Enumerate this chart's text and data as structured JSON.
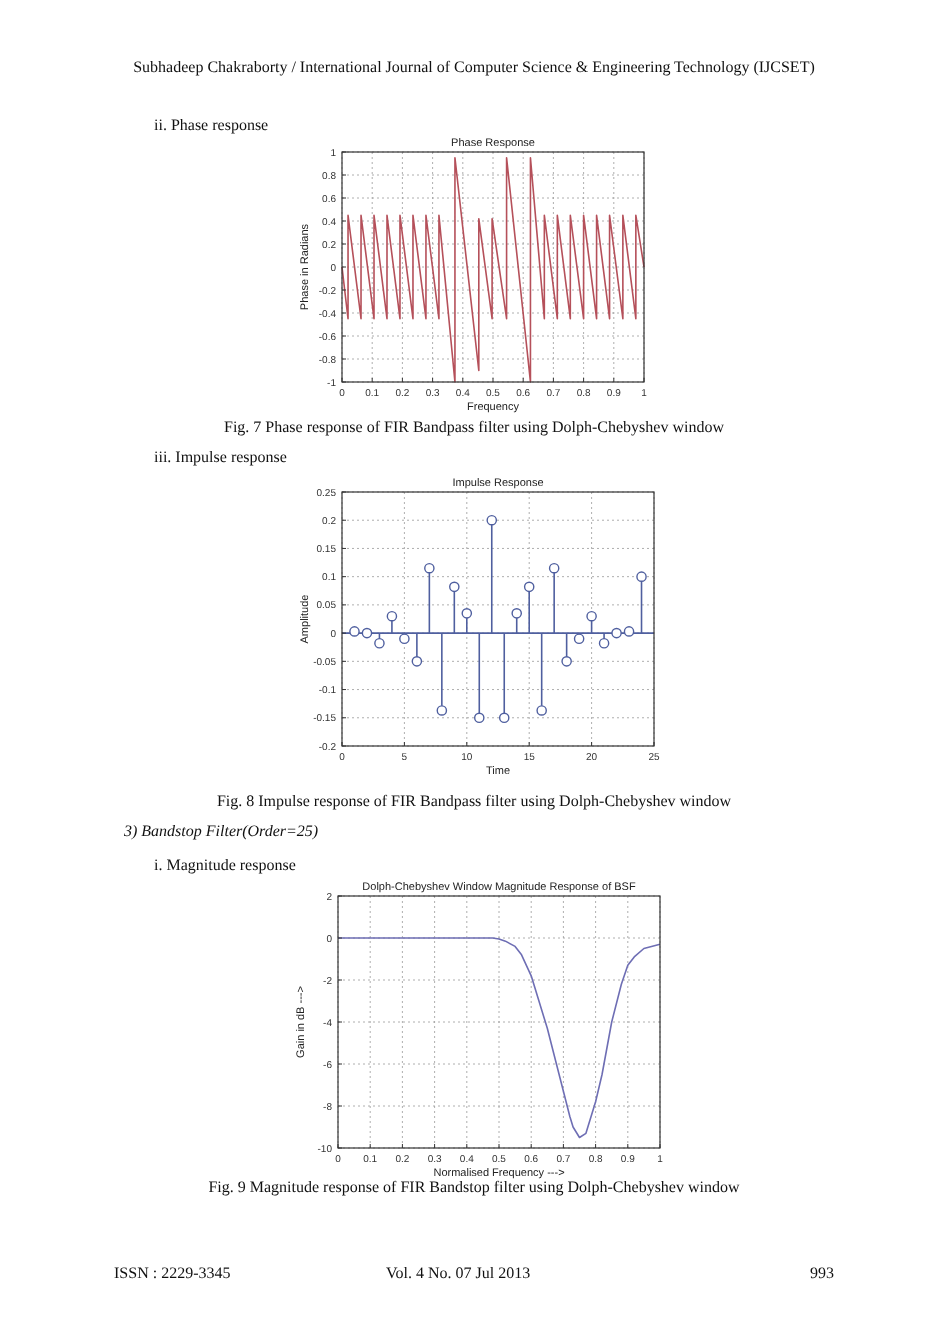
{
  "chart_data": [
    {
      "type": "line",
      "title": "Phase Response",
      "xlabel": "Frequency",
      "ylabel": "Phase in Radians",
      "series": [
        {
          "color": "#b5505a",
          "x": [
            0,
            0.02,
            0.02,
            0.063,
            0.063,
            0.106,
            0.106,
            0.149,
            0.149,
            0.192,
            0.192,
            0.235,
            0.235,
            0.278,
            0.278,
            0.321,
            0.321,
            0.374,
            0.374,
            0.453,
            0.453,
            0.497,
            0.497,
            0.545,
            0.545,
            0.624,
            0.624,
            0.67,
            0.67,
            0.713,
            0.713,
            0.756,
            0.756,
            0.8,
            0.8,
            0.843,
            0.843,
            0.886,
            0.886,
            0.93,
            0.93,
            0.973,
            0.973,
            1
          ],
          "values": [
            0,
            -0.45,
            0.45,
            -0.45,
            0.45,
            -0.45,
            0.45,
            -0.45,
            0.45,
            -0.45,
            0.45,
            -0.45,
            0.45,
            -0.45,
            0.45,
            -0.45,
            0.45,
            -1,
            0.95,
            -0.9,
            0.42,
            -0.45,
            0.42,
            -0.45,
            0.95,
            -1,
            0.95,
            -0.45,
            0.45,
            -0.45,
            0.45,
            -0.45,
            0.45,
            -0.45,
            0.45,
            -0.45,
            0.45,
            -0.45,
            0.45,
            -0.45,
            0.45,
            -0.45,
            0.45,
            0
          ]
        }
      ],
      "xlim": [
        0,
        1
      ],
      "xticks": [
        0,
        0.1,
        0.2,
        0.3,
        0.4,
        0.5,
        0.6,
        0.7,
        0.8,
        0.9,
        1
      ],
      "ylim": [
        -1,
        1
      ],
      "yticks": [
        -1,
        -0.8,
        -0.6,
        -0.4,
        -0.2,
        0,
        0.2,
        0.4,
        0.6,
        0.8,
        1
      ],
      "grid": true,
      "line_style": "solid",
      "annotations": [
        "Subhadeep Chakraborty / International Journal of Computer Science & Engineering Technology (IJCSET)",
        "ii.  Phase response",
        "Fig. 7 Phase response of FIR Bandpass filter using Dolph-Chebyshev window"
      ]
    },
    {
      "type": "lollipop",
      "title": "Impulse Response",
      "xlabel": "Time",
      "ylabel": "Amplitude",
      "series": [
        {
          "color": "#4f5f9f",
          "x": [
            1,
            2,
            3,
            4,
            5,
            6,
            7,
            8,
            9,
            10,
            11,
            12,
            13,
            14,
            15,
            16,
            17,
            18,
            19,
            20,
            21,
            22,
            23,
            24
          ],
          "values": [
            0.003,
            0,
            -0.018,
            0.03,
            -0.01,
            -0.05,
            0.115,
            -0.137,
            0.082,
            0.035,
            -0.15,
            0.2,
            -0.15,
            0.035,
            0.082,
            -0.137,
            0.115,
            -0.05,
            -0.01,
            0.03,
            -0.018,
            0,
            0.003,
            0.1
          ]
        }
      ],
      "xlim": [
        0,
        25
      ],
      "xticks": [
        0,
        5,
        10,
        15,
        20,
        25
      ],
      "ylim": [
        -0.2,
        0.25
      ],
      "yticks": [
        -0.2,
        -0.15,
        -0.1,
        -0.05,
        0,
        0.05,
        0.1,
        0.15,
        0.2,
        0.25
      ],
      "ref_lines": [
        {
          "axis": "y",
          "value": 0,
          "color": "#4f5f9f"
        }
      ],
      "grid": true,
      "marker": "circle",
      "annotations": [
        "iii.  Impulse response",
        "Fig. 8 Impulse response of FIR Bandpass filter using Dolph-Chebyshev window"
      ]
    },
    {
      "type": "line",
      "title": "Dolph-Chebyshev Window Magnitude Response of BSF",
      "xlabel": "Normalised Frequency --->",
      "ylabel": "Gain in dB --->",
      "series": [
        {
          "color": "#6e6eb4",
          "x": [
            0,
            0.1,
            0.2,
            0.3,
            0.4,
            0.45,
            0.48,
            0.5,
            0.52,
            0.55,
            0.57,
            0.6,
            0.62,
            0.65,
            0.67,
            0.7,
            0.72,
            0.73,
            0.75,
            0.77,
            0.8,
            0.82,
            0.85,
            0.88,
            0.9,
            0.92,
            0.95,
            1
          ],
          "values": [
            0,
            0,
            0,
            0,
            0,
            0,
            0,
            -0.05,
            -0.15,
            -0.4,
            -0.8,
            -1.8,
            -2.8,
            -4.3,
            -5.5,
            -7.3,
            -8.5,
            -9,
            -9.5,
            -9.3,
            -7.8,
            -6.5,
            -4,
            -2.2,
            -1.3,
            -0.9,
            -0.5,
            -0.3
          ]
        }
      ],
      "xlim": [
        0,
        1
      ],
      "xticks": [
        0,
        0.1,
        0.2,
        0.3,
        0.4,
        0.5,
        0.6,
        0.7,
        0.8,
        0.9,
        1
      ],
      "ylim": [
        -10,
        2
      ],
      "yticks": [
        -10,
        -8,
        -6,
        -4,
        -2,
        0,
        2
      ],
      "grid": true,
      "line_style": "solid",
      "annotations": [
        "3)  Bandstop Filter(Order=25)",
        "i.  Magnitude response",
        "Fig. 9 Magnitude response of FIR Bandstop filter using Dolph-Chebyshev window",
        "ISSN : 2229-3345",
        "Vol. 4 No. 07 Jul 2013",
        "993"
      ]
    }
  ]
}
